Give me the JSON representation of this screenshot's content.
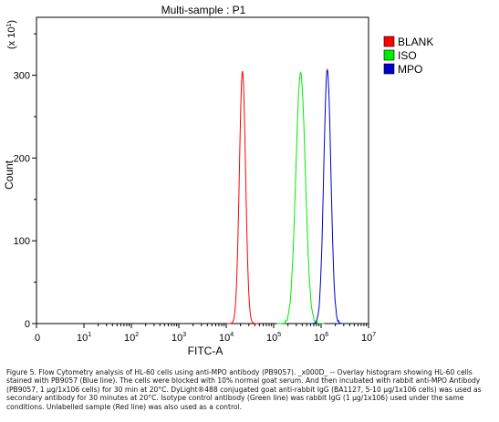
{
  "chart_data": {
    "type": "histogram",
    "title": "Multi-sample : P1",
    "xlabel": "FITC-A",
    "ylabel": "Count",
    "y_multiplier": "(x 10",
    "y_multiplier_exp": "1",
    "y_multiplier_close": ")",
    "x_scale": "log",
    "xlim": [
      1,
      10000000
    ],
    "ylim": [
      0,
      370
    ],
    "x_ticks": [
      {
        "value": 1,
        "base": "0",
        "exp": ""
      },
      {
        "value": 10,
        "base": "10",
        "exp": "1"
      },
      {
        "value": 100,
        "base": "10",
        "exp": "2"
      },
      {
        "value": 1000,
        "base": "10",
        "exp": "3"
      },
      {
        "value": 10000,
        "base": "10",
        "exp": "4"
      },
      {
        "value": 100000,
        "base": "10",
        "exp": "5"
      },
      {
        "value": 1000000,
        "base": "10",
        "exp": "6"
      },
      {
        "value": 10000000,
        "base": "10",
        "exp": "7"
      }
    ],
    "y_ticks": [
      0,
      100,
      200,
      300
    ],
    "grid": false,
    "legend_position": "right",
    "series": [
      {
        "name": "BLANK",
        "color": "#ff0000",
        "peak_x": 22000,
        "peak_y": 305,
        "width_decades": 0.065,
        "noise_level": 0
      },
      {
        "name": "ISO",
        "color": "#00ee00",
        "peak_x": 370000,
        "peak_y": 303,
        "width_decades": 0.1,
        "noise_level": 2
      },
      {
        "name": "MPO",
        "color": "#0000cc",
        "peak_x": 1350000,
        "peak_y": 307,
        "width_decades": 0.075,
        "noise_level": 2
      }
    ]
  },
  "caption": "Figure 5. Flow Cytometry analysis of HL-60 cells using anti-MPO antibody (PB9057). _x000D_ -- Overlay histogram showing HL-60 cells stained with PB9057 (Blue line). The cells were blocked with 10% normal goat serum. And then incubated with rabbit anti-MPO Antibody (PB9057, 1 μg/1x106 cells) for 30 min at 20°C. DyLight®488 conjugated goat anti-rabbit IgG (BA1127, 5-10 μg/1x106 cells) was used as secondary antibody for 30 minutes at 20°C. Isotype control antibody (Green line) was rabbit IgG (1 μg/1x106) used under the same conditions. Unlabelled sample (Red line) was also used as a control."
}
